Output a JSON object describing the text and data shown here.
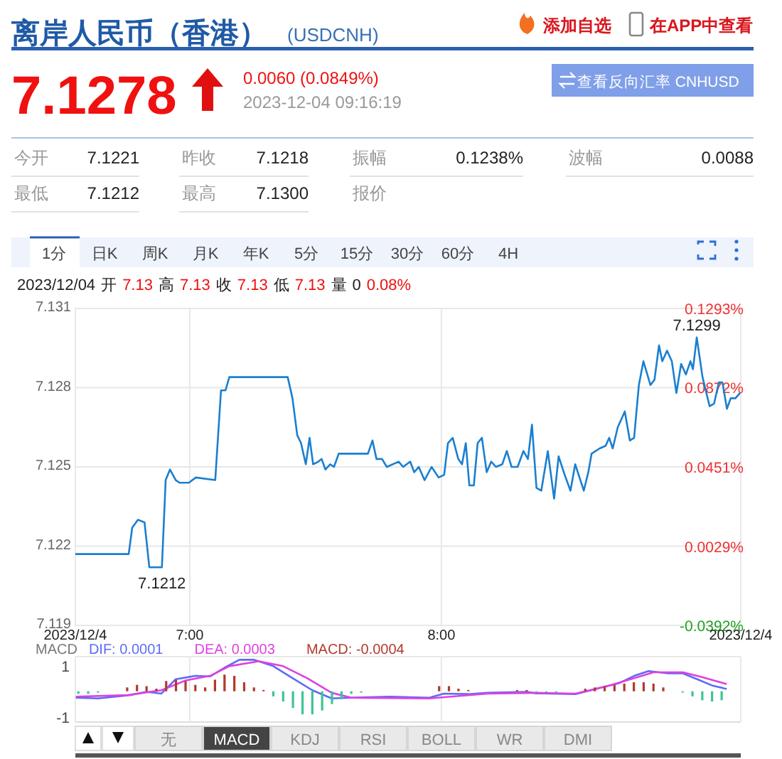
{
  "chart_data": [
    {
      "type": "other",
      "title": "离岸人民币（香港）",
      "subtitle": "(USDCNH)",
      "annotations": [
        "添加自选",
        "在APP中查看",
        "7.1278",
        "0.0060 (0.0849%)",
        "2023-12-04 09:16:19",
        "查看反向汇率 CNHUSD",
        "今开",
        "7.1221",
        "昨收",
        "7.1218",
        "振幅",
        "0.1238%",
        "波幅",
        "0.0088",
        "最低",
        "7.1212",
        "最高",
        "7.1300",
        "报价"
      ]
    },
    {
      "type": "line",
      "color": "#1a7fd0",
      "x": [
        6.545,
        6.757,
        6.771,
        6.794,
        6.82,
        6.839,
        6.889,
        6.904,
        6.921,
        6.944,
        6.959,
        6.996,
        7.024,
        7.101,
        7.124,
        7.142,
        7.157,
        7.389,
        7.408,
        7.427,
        7.442,
        7.461,
        7.476,
        7.49,
        7.511,
        7.524,
        7.539,
        7.558,
        7.573,
        7.592,
        7.624,
        7.708,
        7.726,
        7.742,
        7.764,
        7.783,
        7.83,
        7.848,
        7.876,
        7.892,
        7.91,
        7.933,
        7.961,
        7.989,
        8.011,
        8.026,
        8.045,
        8.067,
        8.082,
        8.097,
        8.111,
        8.129,
        8.144,
        8.161,
        8.18,
        8.198,
        8.217,
        8.242,
        8.26,
        8.279,
        8.303,
        8.326,
        8.344,
        8.36,
        8.378,
        8.397,
        8.423,
        8.448,
        8.466,
        8.49,
        8.513,
        8.532,
        8.566,
        8.584,
        8.597,
        8.629,
        8.653,
        8.667,
        8.681,
        8.701,
        8.729,
        8.749,
        8.766,
        8.785,
        8.803,
        8.831,
        8.847,
        8.865,
        8.878,
        8.897,
        8.916,
        8.934,
        8.953,
        8.972,
        8.99,
        9.0,
        9.015,
        9.038,
        9.066,
        9.084,
        9.103,
        9.117,
        9.135,
        9.15,
        9.169,
        9.187
      ],
      "values": [
        7.1217,
        7.1217,
        7.1227,
        7.123,
        7.1229,
        7.1212,
        7.1212,
        7.1245,
        7.1249,
        7.1245,
        7.1244,
        7.1244,
        7.1246,
        7.1245,
        7.1279,
        7.1279,
        7.1284,
        7.1284,
        7.1276,
        7.1262,
        7.1259,
        7.1251,
        7.1261,
        7.1251,
        7.1252,
        7.1253,
        7.1249,
        7.1251,
        7.125,
        7.1255,
        7.1255,
        7.1255,
        7.126,
        7.1253,
        7.1253,
        7.125,
        7.1252,
        7.125,
        7.1252,
        7.1248,
        7.125,
        7.1245,
        7.125,
        7.1246,
        7.1247,
        7.1259,
        7.1261,
        7.1253,
        7.1251,
        7.1259,
        7.1243,
        7.1243,
        7.1259,
        7.1261,
        7.1248,
        7.1252,
        7.125,
        7.1251,
        7.1256,
        7.125,
        7.125,
        7.1256,
        7.1253,
        7.1266,
        7.1242,
        7.1241,
        7.1256,
        7.1238,
        7.1254,
        7.1247,
        7.1241,
        7.1251,
        7.1241,
        7.1248,
        7.1255,
        7.1257,
        7.1258,
        7.1261,
        7.1257,
        7.1265,
        7.1271,
        7.126,
        7.1261,
        7.1281,
        7.129,
        7.1281,
        7.1283,
        7.1296,
        7.129,
        7.1294,
        7.129,
        7.1278,
        7.1289,
        7.1285,
        7.129,
        7.1287,
        7.1299,
        7.1284,
        7.1273,
        7.1274,
        7.1282,
        7.1282,
        7.1272,
        7.1276,
        7.1276,
        7.1278
      ],
      "xlim": [
        6.545,
        9.19
      ],
      "xticks": [
        {
          "value": 6.545,
          "label": "2023/12/4"
        },
        {
          "value": 7,
          "label": "7:00"
        },
        {
          "value": 8,
          "label": "8:00"
        },
        {
          "value": 9.19,
          "label": "2023/12/4"
        }
      ],
      "ylim": [
        7.119,
        7.131
      ],
      "yticks": [
        7.119,
        7.122,
        7.125,
        7.128,
        7.131
      ],
      "y2lim": [
        -0.0392,
        0.1293
      ],
      "y2ticks": [
        {
          "value": -0.0392,
          "label": "-0.0392%"
        },
        {
          "value": 0.0029,
          "label": "0.0029%"
        },
        {
          "value": 0.0451,
          "label": "0.0451%"
        },
        {
          "value": 0.0872,
          "label": "0.0872%"
        },
        {
          "value": 0.1293,
          "label": "0.1293%"
        }
      ],
      "grid": true,
      "annotations": [
        "1分",
        "日K",
        "周K",
        "月K",
        "年K",
        "5分",
        "15分",
        "30分",
        "60分",
        "4H",
        "2023/12/04",
        "开",
        "7.13",
        "高",
        "7.13",
        "收",
        "7.13",
        "低",
        "7.13",
        "量",
        "0",
        "0.08%",
        {
          "text": "7.1212",
          "x": 6.889,
          "y": 7.1212
        },
        {
          "text": "7.1299",
          "x": 9.015,
          "y": 7.1299
        }
      ]
    },
    {
      "type": "bar",
      "title": "MACD",
      "xlim": [
        6.545,
        9.19
      ],
      "ylim": [
        -1.2,
        1.35
      ],
      "yticks": [
        1,
        -1
      ],
      "xticks": [
        {
          "value": 7,
          "label": null
        },
        {
          "value": 8,
          "label": null
        }
      ],
      "grid": "x",
      "tick_labels": "y",
      "series": [
        {
          "name": "DIF: 0.0001",
          "type": "line",
          "color": "#5b6cf5",
          "x": [
            6.547,
            6.635,
            6.761,
            6.828,
            6.887,
            6.944,
            7.022,
            7.08,
            7.138,
            7.197,
            7.254,
            7.332,
            7.409,
            7.487,
            7.564,
            7.642,
            7.797,
            7.952,
            8.01,
            8.107,
            8.184,
            8.339,
            8.378,
            8.533,
            8.63,
            8.707,
            8.766,
            8.824,
            8.901,
            8.96,
            9.017,
            9.075,
            9.134
          ],
          "values": [
            -0.25,
            -0.28,
            -0.15,
            -0.02,
            -0.09,
            0.47,
            0.6,
            0.58,
            0.92,
            1.23,
            1.23,
            0.98,
            0.51,
            0.04,
            -0.28,
            -0.25,
            -0.21,
            -0.25,
            -0.09,
            -0.11,
            -0.06,
            -0.02,
            -0.08,
            -0.11,
            0.13,
            0.32,
            0.6,
            0.79,
            0.7,
            0.7,
            0.47,
            0.23,
            0.09
          ]
        },
        {
          "name": "DEA: 0.0003",
          "type": "line",
          "color": "#e040e0",
          "x": [
            6.547,
            6.753,
            6.887,
            6.983,
            7.08,
            7.157,
            7.274,
            7.371,
            7.467,
            7.564,
            7.642,
            7.952,
            8.184,
            8.378,
            8.533,
            8.669,
            8.766,
            8.843,
            8.96,
            9.036,
            9.134
          ],
          "values": [
            -0.21,
            -0.15,
            0.04,
            0.42,
            0.6,
            0.98,
            1.17,
            0.98,
            0.51,
            -0.06,
            -0.25,
            -0.28,
            -0.09,
            -0.06,
            -0.09,
            0.23,
            0.51,
            0.74,
            0.74,
            0.55,
            0.28
          ]
        },
        {
          "name": "MACD: -0.0004",
          "type": "bar",
          "color": "#b3392a",
          "x": [
            6.751,
            6.79,
            6.828,
            6.867,
            6.906,
            6.945,
            6.983,
            7.022,
            7.061,
            7.1,
            7.138,
            7.177,
            7.216,
            7.255,
            7.293,
            7.991,
            8.03,
            8.068,
            8.107,
            8.301,
            8.339,
            8.572,
            8.61,
            8.649,
            8.688,
            8.727,
            8.765,
            8.804,
            8.843,
            8.882
          ],
          "values": [
            0.15,
            0.25,
            0.2,
            0.1,
            0.4,
            0.45,
            0.4,
            0.25,
            0.15,
            0.45,
            0.65,
            0.6,
            0.35,
            0.15,
            0.05,
            0.2,
            0.2,
            0.1,
            0.05,
            0.05,
            0.05,
            0.1,
            0.15,
            0.2,
            0.25,
            0.3,
            0.35,
            0.35,
            0.3,
            0.15
          ]
        },
        {
          "type": "bar",
          "color": "#3cc496",
          "x": [
            6.557,
            6.596,
            6.635,
            7.332,
            7.371,
            7.41,
            7.448,
            7.487,
            7.526,
            7.565,
            7.603,
            7.642,
            7.681,
            8.378,
            8.417,
            8.456,
            8.959,
            8.998,
            9.037,
            9.076,
            9.114
          ],
          "values": [
            -0.1,
            -0.1,
            -0.05,
            -0.2,
            -0.4,
            -0.65,
            -0.9,
            -0.9,
            -0.75,
            -0.5,
            -0.3,
            -0.1,
            -0.05,
            -0.05,
            -0.05,
            -0.05,
            -0.05,
            -0.2,
            -0.35,
            -0.4,
            -0.35
          ]
        }
      ],
      "annotations": [
        "无",
        "MACD",
        "KDJ",
        "RSI",
        "BOLL",
        "WR",
        "DMI"
      ]
    }
  ]
}
